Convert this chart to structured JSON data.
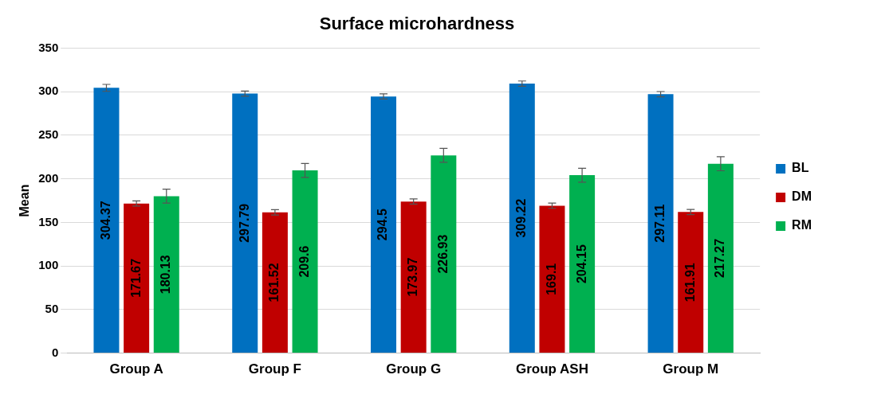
{
  "chart_data": {
    "type": "bar",
    "title": "Surface microhardness",
    "ylabel": "Mean",
    "categories": [
      "Group A",
      "Group F",
      "Group G",
      "Group ASH",
      "Group M"
    ],
    "series": [
      {
        "name": "BL",
        "color": "#0070c0",
        "values": [
          304.37,
          297.79,
          294.5,
          309.22,
          297.11
        ],
        "errors": [
          4,
          3,
          3,
          3,
          3
        ]
      },
      {
        "name": "DM",
        "color": "#c00000",
        "values": [
          171.67,
          161.52,
          173.97,
          169.1,
          161.91
        ],
        "errors": [
          3,
          3,
          3,
          3,
          3
        ]
      },
      {
        "name": "RM",
        "color": "#00b050",
        "values": [
          180.13,
          209.6,
          226.93,
          204.15,
          217.27
        ],
        "errors": [
          8,
          8,
          8,
          8,
          8
        ]
      }
    ],
    "ylim": [
      0,
      350
    ],
    "yticks": [
      0,
      50,
      100,
      150,
      200,
      250,
      300,
      350
    ],
    "grid": "y",
    "legend": "right",
    "data_labels": true
  }
}
